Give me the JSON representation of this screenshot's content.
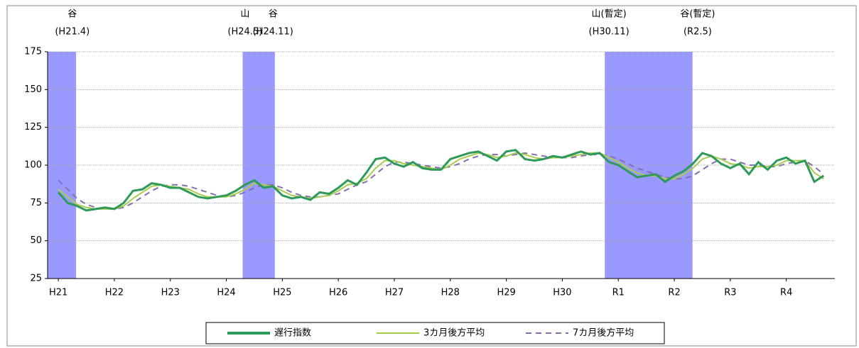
{
  "chart_data": {
    "type": "line",
    "x": [
      0,
      2,
      4,
      6,
      8,
      10,
      12,
      14,
      16,
      18,
      20,
      22,
      24,
      26,
      28,
      30,
      32,
      34,
      36,
      38,
      40,
      42,
      44,
      46,
      48,
      50,
      52,
      54,
      56,
      58,
      60,
      62,
      64,
      66,
      68,
      70,
      72,
      74,
      76,
      78,
      80,
      82,
      84,
      86,
      88,
      90,
      92,
      94,
      96,
      98,
      100,
      102,
      104,
      106,
      108,
      110,
      112,
      114,
      116,
      118,
      120,
      122,
      124,
      126,
      128,
      130,
      132,
      134,
      136,
      138,
      140,
      142,
      144,
      146,
      148,
      150,
      152,
      154,
      156,
      158,
      160,
      162,
      164
    ],
    "series": [
      {
        "name": "遅行指数",
        "color": "#2e9a5a",
        "dash": false,
        "values": [
          82,
          75,
          73,
          70,
          71,
          72,
          71,
          75,
          83,
          84,
          88,
          87,
          85,
          85,
          82,
          79,
          78,
          79,
          80,
          83,
          87,
          90,
          85,
          86,
          80,
          78,
          79,
          77,
          82,
          81,
          85,
          90,
          87,
          95,
          104,
          105,
          101,
          99,
          102,
          98,
          97,
          97,
          104,
          106,
          108,
          109,
          106,
          103,
          109,
          110,
          104,
          103,
          104,
          106,
          105,
          107,
          109,
          107,
          108,
          102,
          100,
          96,
          92,
          93,
          94,
          89,
          93,
          96,
          101,
          108,
          106,
          101,
          98,
          101,
          94,
          102,
          97,
          103,
          105,
          101,
          103,
          89,
          93
        ]
      },
      {
        "name": "3カ月後方平均",
        "color": "#a8cc4c",
        "dash": false,
        "values": [
          84,
          79,
          74,
          72,
          71,
          71,
          71,
          73,
          78,
          82,
          86,
          87,
          86,
          85,
          84,
          81,
          79,
          79,
          79,
          81,
          84,
          88,
          87,
          86,
          83,
          80,
          79,
          78,
          79,
          80,
          83,
          87,
          88,
          91,
          98,
          103,
          103,
          101,
          100,
          99,
          98,
          97,
          100,
          104,
          106,
          108,
          107,
          105,
          106,
          108,
          107,
          105,
          104,
          105,
          105,
          106,
          107,
          108,
          108,
          105,
          102,
          98,
          95,
          93,
          93,
          91,
          91,
          94,
          98,
          104,
          106,
          104,
          101,
          100,
          98,
          99,
          99,
          100,
          103,
          103,
          103,
          95,
          91
        ]
      },
      {
        "name": "7カ月後方平均",
        "color": "#8470b0",
        "dash": true,
        "values": [
          90,
          84,
          78,
          74,
          72,
          71,
          71,
          72,
          75,
          79,
          83,
          86,
          87,
          87,
          86,
          84,
          82,
          80,
          79,
          80,
          82,
          85,
          87,
          87,
          85,
          82,
          80,
          79,
          79,
          80,
          81,
          84,
          87,
          89,
          94,
          99,
          102,
          102,
          101,
          100,
          99,
          98,
          99,
          101,
          104,
          106,
          107,
          107,
          106,
          107,
          108,
          107,
          106,
          105,
          105,
          105,
          106,
          107,
          107,
          106,
          104,
          101,
          98,
          96,
          94,
          92,
          91,
          91,
          93,
          97,
          101,
          104,
          104,
          102,
          100,
          100,
          99,
          99,
          101,
          102,
          103,
          99,
          94
        ]
      }
    ],
    "xlim": [
      -2.3,
      166.4
    ],
    "xticks": [
      {
        "value": 0,
        "label": "H21"
      },
      {
        "value": 12,
        "label": "H22"
      },
      {
        "value": 24,
        "label": "H23"
      },
      {
        "value": 36,
        "label": "H24"
      },
      {
        "value": 48,
        "label": "H25"
      },
      {
        "value": 60,
        "label": "H26"
      },
      {
        "value": 72,
        "label": "H27"
      },
      {
        "value": 84,
        "label": "H28"
      },
      {
        "value": 96,
        "label": "H29"
      },
      {
        "value": 108,
        "label": "H30"
      },
      {
        "value": 120,
        "label": "R1"
      },
      {
        "value": 132,
        "label": "R2"
      },
      {
        "value": 144,
        "label": "R3"
      },
      {
        "value": 156,
        "label": "R4"
      }
    ],
    "ylim": [
      25,
      175
    ],
    "yticks": [
      25,
      50,
      75,
      100,
      125,
      150,
      175
    ],
    "grid": true,
    "band_color": "#9999ff",
    "bands": [
      [
        -2.3,
        3.8
      ],
      [
        39.5,
        46.4
      ],
      [
        117.1,
        135.9
      ]
    ],
    "annotations": [
      {
        "mark": "谷",
        "date": "(H21.4)",
        "x": 3
      },
      {
        "mark": "山",
        "date": "(H24.5)",
        "x": 40
      },
      {
        "mark": "谷",
        "date": "(H24.11)",
        "x": 46
      },
      {
        "mark": "山(暫定)",
        "date": "(H30.11)",
        "x": 118
      },
      {
        "mark": "谷(暫定)",
        "date": "(R2.5)",
        "x": 137
      }
    ],
    "legend": "bottom"
  }
}
